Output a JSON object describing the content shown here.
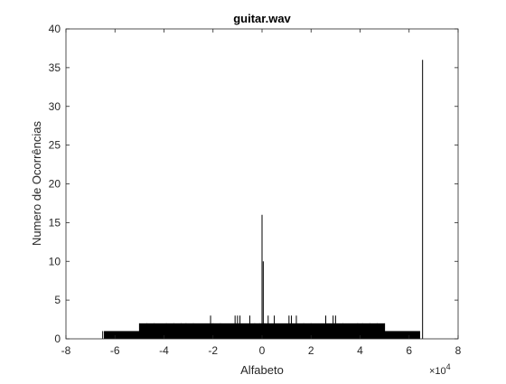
{
  "chart_data": {
    "type": "bar",
    "title": "guitar.wav",
    "xlabel": "Alfabeto",
    "ylabel": "Numero de Ocorrências",
    "xlim": [
      -80000,
      80000
    ],
    "ylim": [
      0,
      40
    ],
    "x_scale_exponent_label": "×10",
    "x_scale_exponent_power": "4",
    "x_ticks": [
      -80000,
      -60000,
      -40000,
      -20000,
      0,
      20000,
      40000,
      60000,
      80000
    ],
    "x_tick_labels": [
      "-8",
      "-6",
      "-4",
      "-2",
      "0",
      "2",
      "4",
      "6",
      "8"
    ],
    "y_ticks": [
      0,
      5,
      10,
      15,
      20,
      25,
      30,
      35,
      40
    ],
    "y_tick_labels": [
      "0",
      "5",
      "10",
      "15",
      "20",
      "25",
      "30",
      "35",
      "40"
    ],
    "grid": false,
    "bar_color": "#000000",
    "base_band": {
      "x_start": -64500,
      "x_end": 64500,
      "value": 1
    },
    "secondary_band": {
      "x_start": -50000,
      "x_end": 50000,
      "value": 2
    },
    "spikes": [
      {
        "x": -65000,
        "value": 1
      },
      {
        "x": -50000,
        "value": 2
      },
      {
        "x": -47000,
        "value": 2
      },
      {
        "x": -44000,
        "value": 2
      },
      {
        "x": -39000,
        "value": 2
      },
      {
        "x": -36000,
        "value": 2
      },
      {
        "x": -33000,
        "value": 2
      },
      {
        "x": -31000,
        "value": 2
      },
      {
        "x": -28000,
        "value": 2
      },
      {
        "x": -21000,
        "value": 3
      },
      {
        "x": -20000,
        "value": 2
      },
      {
        "x": -17000,
        "value": 2
      },
      {
        "x": -11000,
        "value": 3
      },
      {
        "x": -10000,
        "value": 3
      },
      {
        "x": -9000,
        "value": 3
      },
      {
        "x": -5000,
        "value": 3
      },
      {
        "x": -3000,
        "value": 2
      },
      {
        "x": -1000,
        "value": 2
      },
      {
        "x": 0,
        "value": 16
      },
      {
        "x": 500,
        "value": 10
      },
      {
        "x": 1000,
        "value": 2
      },
      {
        "x": 2500,
        "value": 3
      },
      {
        "x": 5000,
        "value": 3
      },
      {
        "x": 11000,
        "value": 3
      },
      {
        "x": 12000,
        "value": 3
      },
      {
        "x": 14000,
        "value": 3
      },
      {
        "x": 17000,
        "value": 2
      },
      {
        "x": 20000,
        "value": 2
      },
      {
        "x": 26000,
        "value": 3
      },
      {
        "x": 29000,
        "value": 3
      },
      {
        "x": 30000,
        "value": 3
      },
      {
        "x": 33000,
        "value": 2
      },
      {
        "x": 39000,
        "value": 2
      },
      {
        "x": 41000,
        "value": 2
      },
      {
        "x": 44000,
        "value": 2
      },
      {
        "x": 47000,
        "value": 2
      },
      {
        "x": 50000,
        "value": 2
      },
      {
        "x": 65500,
        "value": 36
      }
    ]
  }
}
